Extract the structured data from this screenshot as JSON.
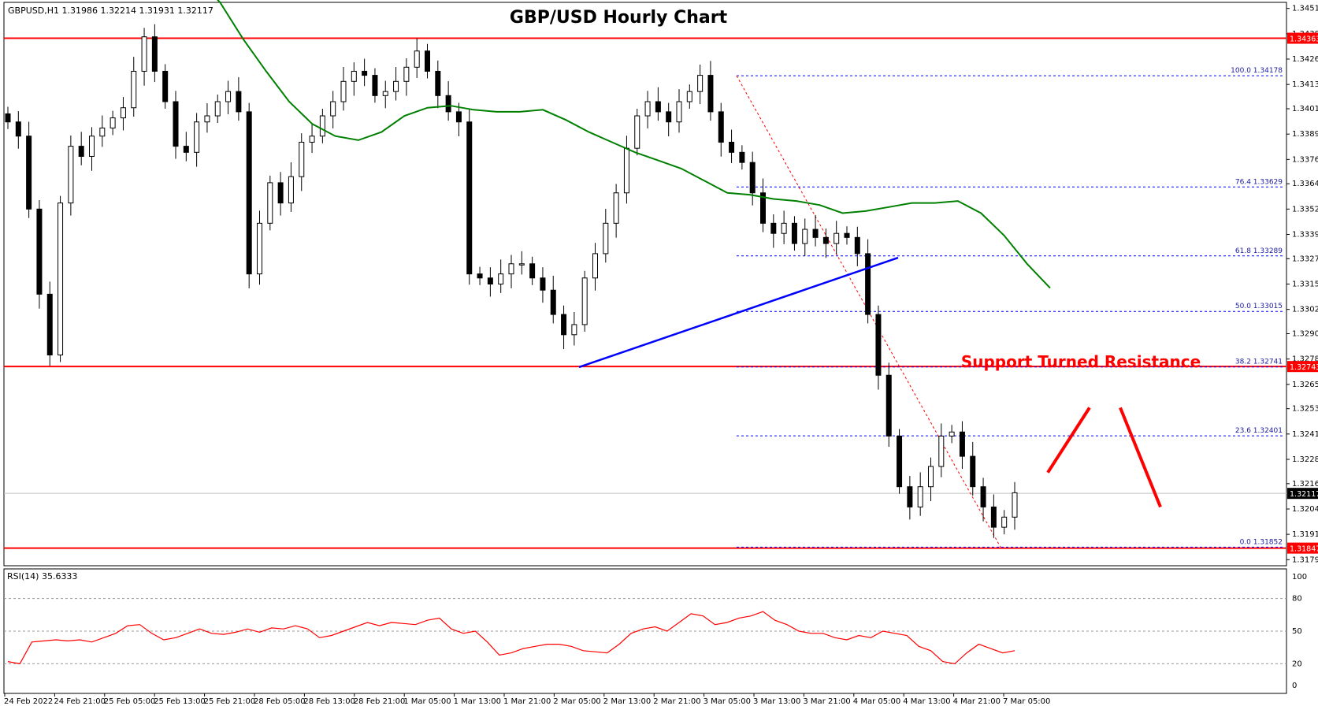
{
  "chart_data": {
    "type": "candlestick",
    "symbol_info": "GBPUSD,H1  1.31986 1.32214 1.31931 1.32117",
    "title": "GBP/USD Hourly Chart",
    "annotation": "Support Turned Resistance",
    "price_axis": {
      "ticks": [
        "1.34510",
        "1.34385",
        "1.34260",
        "1.34135",
        "1.34015",
        "1.33890",
        "1.33765",
        "1.33645",
        "1.33520",
        "1.33395",
        "1.33275",
        "1.33150",
        "1.33025",
        "1.32905",
        "1.32780",
        "1.32655",
        "1.32535",
        "1.32410",
        "1.32285",
        "1.32165",
        "1.32040",
        "1.31915",
        "1.31790"
      ],
      "range": [
        1.3176,
        1.3454
      ]
    },
    "price_tags": [
      {
        "label": "1.34363",
        "value": 1.34363,
        "color": "#ff0000"
      },
      {
        "label": "1.32743",
        "value": 1.32743,
        "color": "#ff0000"
      },
      {
        "label": "1.32117",
        "value": 1.32117,
        "color": "#000000"
      },
      {
        "label": "1.31847",
        "value": 1.31847,
        "color": "#ff0000"
      }
    ],
    "horizontal_lines": [
      {
        "value": 1.34363,
        "color": "#ff0000"
      },
      {
        "value": 1.32743,
        "color": "#ff0000"
      },
      {
        "value": 1.31847,
        "color": "#ff0000"
      }
    ],
    "fibonacci": [
      {
        "label": "100.0 1.34178",
        "value": 1.34178
      },
      {
        "label": "76.4 1.33629",
        "value": 1.33629
      },
      {
        "label": "61.8 1.33289",
        "value": 1.33289
      },
      {
        "label": "50.0 1.33015",
        "value": 1.33015
      },
      {
        "label": "38.2 1.32741",
        "value": 1.32741
      },
      {
        "label": "23.6 1.32401",
        "value": 1.32401
      },
      {
        "label": "0.0 1.31852",
        "value": 1.31852
      }
    ],
    "time_axis": [
      "24 Feb 2022",
      "24 Feb 21:00",
      "25 Feb 05:00",
      "25 Feb 13:00",
      "25 Feb 21:00",
      "28 Feb 05:00",
      "28 Feb 13:00",
      "28 Feb 21:00",
      "1 Mar 05:00",
      "1 Mar 13:00",
      "1 Mar 21:00",
      "2 Mar 05:00",
      "2 Mar 13:00",
      "2 Mar 21:00",
      "3 Mar 05:00",
      "3 Mar 13:00",
      "3 Mar 21:00",
      "4 Mar 05:00",
      "4 Mar 13:00",
      "4 Mar 21:00",
      "7 Mar 05:00"
    ],
    "close_path": [
      1.3395,
      1.3388,
      1.3352,
      1.331,
      1.328,
      1.3355,
      1.3383,
      1.3378,
      1.3388,
      1.3392,
      1.3397,
      1.3402,
      1.342,
      1.3437,
      1.342,
      1.3405,
      1.3383,
      1.338,
      1.3395,
      1.3398,
      1.3405,
      1.341,
      1.34,
      1.332,
      1.3345,
      1.3365,
      1.3355,
      1.3368,
      1.3385,
      1.3388,
      1.3398,
      1.3405,
      1.3415,
      1.342,
      1.3418,
      1.3408,
      1.341,
      1.3415,
      1.3422,
      1.343,
      1.342,
      1.3408,
      1.34,
      1.3395,
      1.332,
      1.3318,
      1.3315,
      1.332,
      1.3325,
      1.3325,
      1.3318,
      1.3312,
      1.33,
      1.329,
      1.3295,
      1.3318,
      1.333,
      1.3345,
      1.336,
      1.3382,
      1.3398,
      1.3405,
      1.34,
      1.3395,
      1.3405,
      1.341,
      1.3418,
      1.34,
      1.3385,
      1.338,
      1.3375,
      1.336,
      1.3345,
      1.334,
      1.3345,
      1.3335,
      1.3342,
      1.3338,
      1.3335,
      1.334,
      1.3338,
      1.333,
      1.33,
      1.327,
      1.324,
      1.3215,
      1.3205,
      1.3215,
      1.3225,
      1.324,
      1.3242,
      1.323,
      1.3215,
      1.3205,
      1.3195,
      1.32,
      1.3212
    ],
    "ma_curve": [
      1.3466,
      1.3454,
      1.3436,
      1.342,
      1.3405,
      1.3394,
      1.3388,
      1.3386,
      1.339,
      1.3398,
      1.3402,
      1.3403,
      1.3401,
      1.34,
      1.34,
      1.3401,
      1.3396,
      1.339,
      1.3385,
      1.338,
      1.3376,
      1.3372,
      1.3366,
      1.336,
      1.3359,
      1.3357,
      1.3356,
      1.3354,
      1.335,
      1.3351,
      1.3353,
      1.3355,
      1.3355,
      1.3356,
      1.335,
      1.3339,
      1.3325,
      1.3313
    ],
    "rsi": {
      "label": "RSI(14) 35.6333",
      "ticks": [
        "100",
        "80",
        "50",
        "20",
        "0"
      ],
      "levels": [
        80,
        50,
        20
      ],
      "values": [
        22,
        20,
        40,
        41,
        42,
        41,
        42,
        40,
        44,
        48,
        55,
        56,
        48,
        42,
        44,
        48,
        52,
        48,
        47,
        49,
        52,
        49,
        53,
        52,
        55,
        52,
        44,
        46,
        50,
        54,
        58,
        55,
        58,
        57,
        56,
        60,
        62,
        52,
        48,
        50,
        40,
        28,
        30,
        34,
        36,
        38,
        38,
        36,
        32,
        31,
        30,
        38,
        48,
        52,
        54,
        50,
        58,
        66,
        64,
        56,
        58,
        62,
        64,
        68,
        60,
        56,
        50,
        48,
        48,
        44,
        42,
        46,
        44,
        50,
        48,
        46,
        36,
        32,
        22,
        20,
        30,
        38,
        34,
        30,
        32
      ]
    },
    "scenario_arrow": {
      "from": 1.3222,
      "peak": 1.3254,
      "to": 1.3205
    },
    "colors": {
      "line": "#ff0000",
      "ma": "#008000",
      "trendline": "#0000ff",
      "fib": "#0000ff",
      "rsi": "#ff0000"
    }
  }
}
